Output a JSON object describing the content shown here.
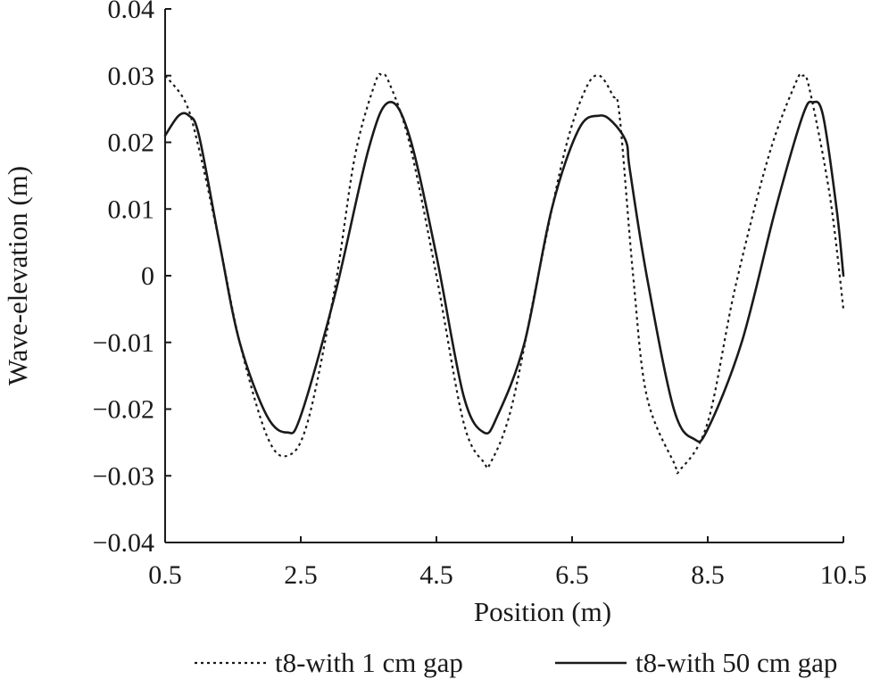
{
  "chart_data": {
    "type": "line",
    "xlabel": "Position (m)",
    "ylabel": "Wave-elevation (m)",
    "xlim": [
      0.5,
      10.5
    ],
    "ylim": [
      -0.04,
      0.04
    ],
    "xticks": [
      "0.5",
      "2.5",
      "4.5",
      "6.5",
      "8.5",
      "10.5"
    ],
    "yticks": [
      "0.04",
      "0.03",
      "0.02",
      "0.01",
      "0",
      "−0.01",
      "−0.02",
      "−0.03",
      "−0.04"
    ],
    "grid": false,
    "legend_position": "bottom",
    "series": [
      {
        "name": "t8-with 1 cm gap",
        "style": "dotted",
        "color": "#1a1a1a",
        "x": [
          0.5,
          0.8,
          1.0,
          1.3,
          1.6,
          2.0,
          2.3,
          2.6,
          3.0,
          3.3,
          3.6,
          3.7,
          3.8,
          4.1,
          4.5,
          4.9,
          5.2,
          5.3,
          5.6,
          6.0,
          6.4,
          6.7,
          6.9,
          7.1,
          7.2,
          7.4,
          7.6,
          8.0,
          8.1,
          8.5,
          8.9,
          9.4,
          9.8,
          9.9,
          10.0,
          10.3,
          10.5
        ],
        "y": [
          0.03,
          0.026,
          0.019,
          0.005,
          -0.01,
          -0.024,
          -0.027,
          -0.022,
          -0.002,
          0.018,
          0.029,
          0.03,
          0.029,
          0.02,
          0.0,
          -0.022,
          -0.028,
          -0.028,
          -0.02,
          0.0,
          0.019,
          0.028,
          0.03,
          0.027,
          0.024,
          0.0,
          -0.018,
          -0.028,
          -0.029,
          -0.022,
          -0.002,
          0.018,
          0.029,
          0.03,
          0.028,
          0.012,
          -0.005
        ]
      },
      {
        "name": "t8-with 50 cm gap",
        "style": "solid",
        "color": "#1a1a1a",
        "x": [
          0.5,
          0.7,
          0.85,
          1.0,
          1.3,
          1.6,
          2.0,
          2.3,
          2.5,
          3.0,
          3.5,
          3.8,
          4.1,
          4.5,
          4.9,
          5.2,
          5.4,
          5.8,
          6.2,
          6.6,
          6.9,
          7.1,
          7.3,
          7.35,
          7.6,
          8.0,
          8.3,
          8.5,
          9.0,
          9.5,
          9.9,
          10.05,
          10.2,
          10.4,
          10.5
        ],
        "y": [
          0.021,
          0.024,
          0.024,
          0.021,
          0.005,
          -0.01,
          -0.021,
          -0.0235,
          -0.021,
          -0.003,
          0.019,
          0.026,
          0.021,
          0.003,
          -0.018,
          -0.0235,
          -0.021,
          -0.01,
          0.01,
          0.022,
          0.024,
          0.023,
          0.02,
          0.016,
          0.0,
          -0.02,
          -0.0245,
          -0.023,
          -0.01,
          0.01,
          0.024,
          0.026,
          0.024,
          0.01,
          0.0
        ]
      }
    ]
  }
}
